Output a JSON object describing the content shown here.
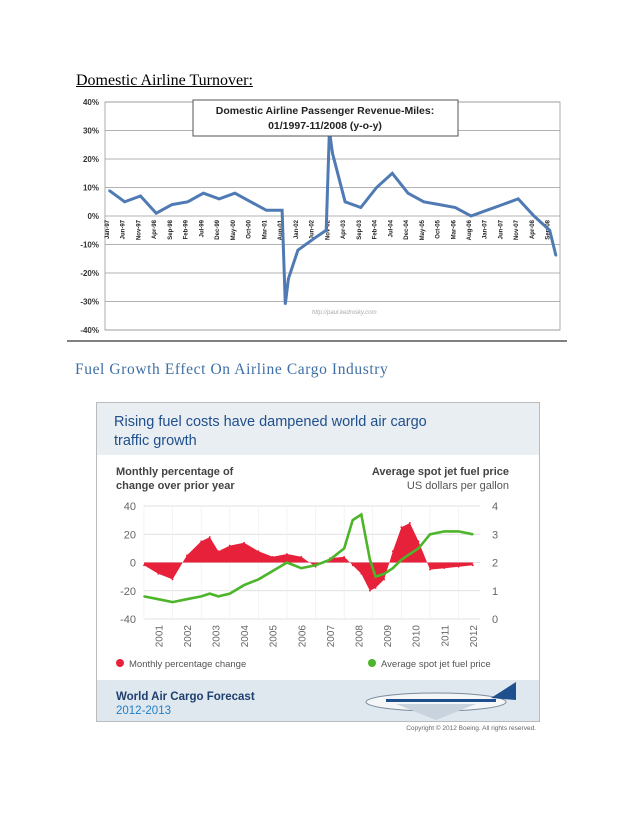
{
  "headings": {
    "turnover": "Domestic Airline Turnover:",
    "fuel": "Fuel Growth Effect On Airline Cargo Industry"
  },
  "chart1": {
    "title_line1": "Domestic Airline Passenger Revenue-Miles:",
    "title_line2": "01/1997-11/2008 (y-o-y)",
    "watermark": "http://paul.kedrosky.com",
    "line_color": "#4f7ab3"
  },
  "chart2": {
    "title_line1": "Rising fuel costs have dampened world air cargo",
    "title_line2": "traffic growth",
    "left_axis_title_line1": "Monthly percentage of",
    "left_axis_title_line2": "change over prior year",
    "right_axis_title_line1": "Average spot jet fuel price",
    "right_axis_title_line2": "US dollars per gallon",
    "legend_left": "Monthly percentage change",
    "legend_right": "Average spot jet fuel price",
    "footer_line1": "World Air Cargo Forecast",
    "footer_line2": "2012-2013",
    "copyright": "Copyright © 2012 Boeing. All rights reserved.",
    "pct_color": "#e8213a",
    "fuel_color": "#4cb52a",
    "accent": "#1f4f8c"
  },
  "chart_data": [
    {
      "type": "line",
      "title": "Domestic Airline Passenger Revenue-Miles: 01/1997-11/2008 (y-o-y)",
      "ylim": [
        -40,
        40
      ],
      "y_ticks": [
        "40%",
        "30%",
        "20%",
        "10%",
        "0%",
        "-10%",
        "-20%",
        "-30%",
        "-40%"
      ],
      "x_tick_labels": [
        "Jan-97",
        "Jun-97",
        "Nov-97",
        "Apr-98",
        "Sep-98",
        "Feb-99",
        "Jul-99",
        "Dec-99",
        "May-00",
        "Oct-00",
        "Mar-01",
        "Aug-01",
        "Jan-02",
        "Jun-02",
        "Nov-02",
        "Apr-03",
        "Sep-03",
        "Feb-04",
        "Jul-04",
        "Dec-04",
        "May-05",
        "Oct-05",
        "Mar-06",
        "Aug-06",
        "Jan-07",
        "Jun-07",
        "Nov-07",
        "Apr-08",
        "Sep-08"
      ],
      "x": [
        "1997-01",
        "1997-06",
        "1997-11",
        "1998-04",
        "1998-09",
        "1999-02",
        "1999-07",
        "1999-12",
        "2000-05",
        "2000-10",
        "2001-03",
        "2001-08",
        "2001-09",
        "2001-10",
        "2002-01",
        "2002-06",
        "2002-10",
        "2002-11",
        "2002-12",
        "2003-04",
        "2003-09",
        "2004-02",
        "2004-07",
        "2004-12",
        "2005-05",
        "2005-10",
        "2006-03",
        "2006-08",
        "2007-01",
        "2007-06",
        "2007-11",
        "2008-04",
        "2008-09",
        "2008-11"
      ],
      "values": [
        9,
        5,
        7,
        1,
        4,
        5,
        8,
        6,
        8,
        5,
        2,
        2,
        -31,
        -22,
        -12,
        -8,
        -5,
        30,
        22,
        5,
        3,
        10,
        15,
        8,
        5,
        4,
        3,
        0,
        2,
        4,
        6,
        0,
        -5,
        -14
      ],
      "grid": true
    },
    {
      "type": "area",
      "title": "Rising fuel costs have dampened world air cargo traffic growth",
      "x": [
        2001,
        2001.5,
        2002,
        2002.5,
        2003,
        2003.3,
        2003.6,
        2004,
        2004.5,
        2005,
        2005.5,
        2006,
        2006.5,
        2007,
        2007.5,
        2008,
        2008.3,
        2008.6,
        2008.9,
        2009.1,
        2009.4,
        2009.7,
        2010,
        2010.3,
        2010.6,
        2011,
        2011.5,
        2012,
        2012.5
      ],
      "x_ticks": [
        "2001",
        "2002",
        "2003",
        "2004",
        "2005",
        "2006",
        "2007",
        "2008",
        "2009",
        "2010",
        "2011",
        "2012"
      ],
      "series": [
        {
          "name": "Monthly percentage change",
          "axis": "left",
          "ylim": [
            -40,
            40
          ],
          "y_ticks": [
            "40",
            "20",
            "0",
            "-20",
            "-40"
          ],
          "values": [
            -2,
            -8,
            -12,
            5,
            15,
            18,
            8,
            12,
            14,
            8,
            4,
            6,
            4,
            -3,
            3,
            4,
            -2,
            -8,
            -20,
            -18,
            -12,
            8,
            25,
            28,
            15,
            -5,
            -4,
            -3,
            -2
          ]
        },
        {
          "name": "Average spot jet fuel price",
          "axis": "right",
          "ylim": [
            0,
            4
          ],
          "y_ticks": [
            "4",
            "3",
            "2",
            "1",
            "0"
          ],
          "values": [
            0.8,
            0.7,
            0.6,
            0.7,
            0.8,
            0.9,
            0.8,
            0.9,
            1.2,
            1.4,
            1.7,
            2.0,
            1.8,
            1.9,
            2.1,
            2.5,
            3.5,
            3.7,
            2.1,
            1.5,
            1.6,
            1.8,
            2.1,
            2.3,
            2.5,
            3.0,
            3.1,
            3.1,
            3.0
          ]
        }
      ]
    }
  ]
}
